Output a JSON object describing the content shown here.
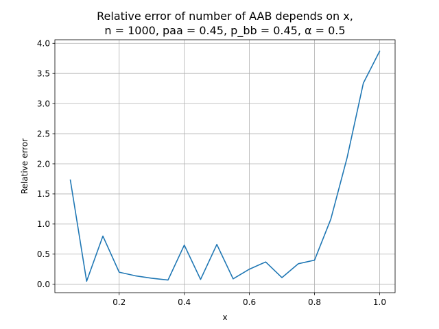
{
  "chart_data": {
    "type": "line",
    "title_line1": "Relative error of number of AAB depends on x,",
    "title_line2": "n = 1000, paa = 0.45, p_bb = 0.45, α = 0.5",
    "xlabel": "x",
    "ylabel": "Relative error",
    "xlim": [
      0.0025,
      1.0475
    ],
    "ylim": [
      -0.14,
      4.06
    ],
    "grid": true,
    "xticks": [
      {
        "value": 0.2,
        "label": "0.2"
      },
      {
        "value": 0.4,
        "label": "0.4"
      },
      {
        "value": 0.6,
        "label": "0.6"
      },
      {
        "value": 0.8,
        "label": "0.8"
      },
      {
        "value": 1.0,
        "label": "1.0"
      }
    ],
    "yticks": [
      {
        "value": 0.0,
        "label": "0.0"
      },
      {
        "value": 0.5,
        "label": "0.5"
      },
      {
        "value": 1.0,
        "label": "1.0"
      },
      {
        "value": 1.5,
        "label": "1.5"
      },
      {
        "value": 2.0,
        "label": "2.0"
      },
      {
        "value": 2.5,
        "label": "2.5"
      },
      {
        "value": 3.0,
        "label": "3.0"
      },
      {
        "value": 3.5,
        "label": "3.5"
      },
      {
        "value": 4.0,
        "label": "4.0"
      }
    ],
    "series": [
      {
        "color": "#1f77b4",
        "x": [
          0.05,
          0.1,
          0.15,
          0.2,
          0.25,
          0.3,
          0.35,
          0.4,
          0.45,
          0.5,
          0.55,
          0.6,
          0.65,
          0.7,
          0.75,
          0.8,
          0.85,
          0.9,
          0.95,
          1.0
        ],
        "y": [
          1.73,
          0.05,
          0.8,
          0.2,
          0.14,
          0.1,
          0.07,
          0.65,
          0.08,
          0.66,
          0.09,
          0.25,
          0.37,
          0.11,
          0.34,
          0.4,
          1.08,
          2.1,
          3.34,
          3.87
        ]
      }
    ]
  }
}
